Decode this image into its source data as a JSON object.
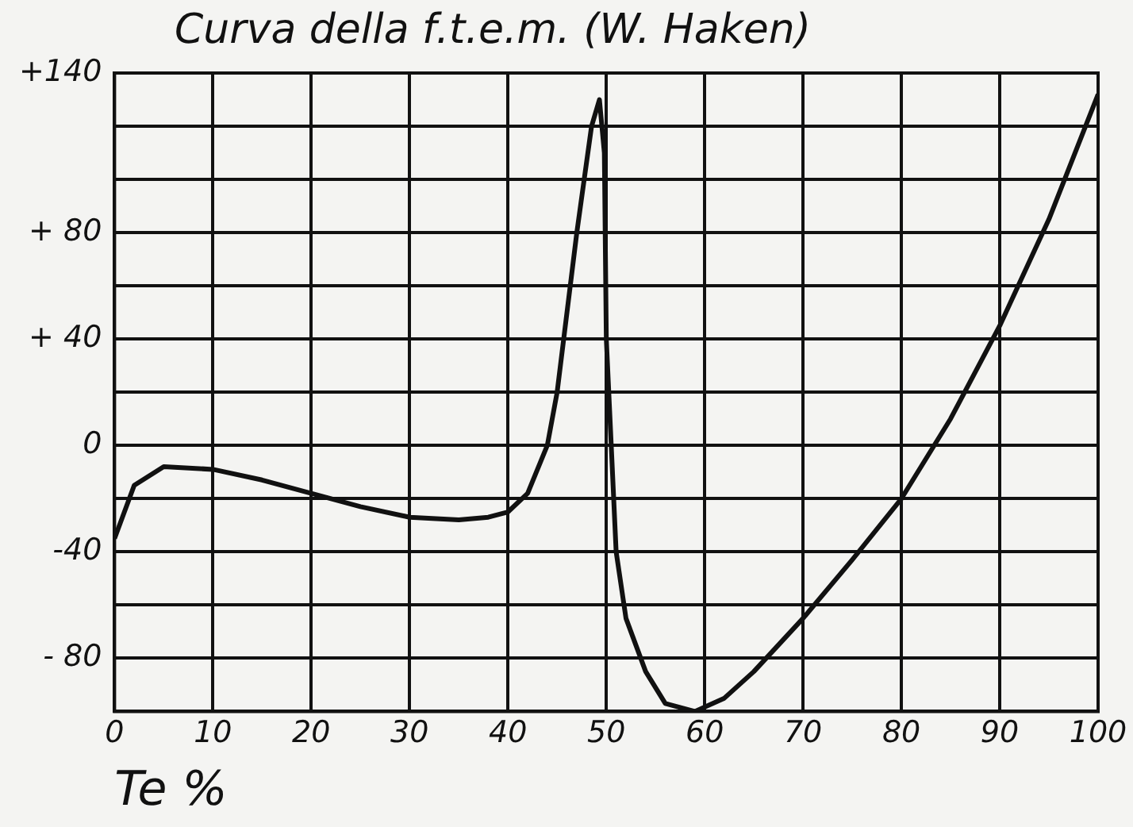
{
  "chart_data": {
    "type": "line",
    "title": "Curva della f.t.e.m. (W. Haken)",
    "xlabel": "Te %",
    "x": [
      0,
      2,
      5,
      10,
      15,
      20,
      25,
      30,
      35,
      38,
      40,
      42,
      44,
      45,
      47,
      48.5,
      49.3,
      49.8,
      50,
      50.5,
      51,
      52,
      54,
      56,
      59,
      62,
      65,
      70,
      75,
      80,
      85,
      90,
      95,
      100
    ],
    "series": [
      {
        "color": "#111111",
        "values": [
          -35,
          -15,
          -8,
          -9,
          -13,
          -18,
          -23,
          -27,
          -28,
          -27,
          -25,
          -18,
          0,
          20,
          80,
          120,
          130,
          110,
          40,
          0,
          -40,
          -65,
          -85,
          -97,
          -100,
          -95,
          -85,
          -65,
          -43,
          -20,
          10,
          45,
          85,
          132
        ]
      }
    ],
    "xlim": [
      0,
      100
    ],
    "xticks": [
      0,
      10,
      20,
      30,
      40,
      50,
      60,
      70,
      80,
      90,
      100
    ],
    "ylim": [
      -100,
      140
    ],
    "yticks": [
      {
        "value": -100,
        "label": null
      },
      {
        "value": -80,
        "label": "- 80"
      },
      {
        "value": -60,
        "label": null
      },
      {
        "value": -40,
        "label": "-40"
      },
      {
        "value": -20,
        "label": null
      },
      {
        "value": 0,
        "label": "0"
      },
      {
        "value": 20,
        "label": null
      },
      {
        "value": 40,
        "label": "+ 40"
      },
      {
        "value": 60,
        "label": null
      },
      {
        "value": 80,
        "label": "+ 80"
      },
      {
        "value": 100,
        "label": null
      },
      {
        "value": 120,
        "label": null
      },
      {
        "value": 140,
        "label": "+140"
      }
    ],
    "grid": true,
    "marker": "none",
    "line_style": "solid"
  }
}
